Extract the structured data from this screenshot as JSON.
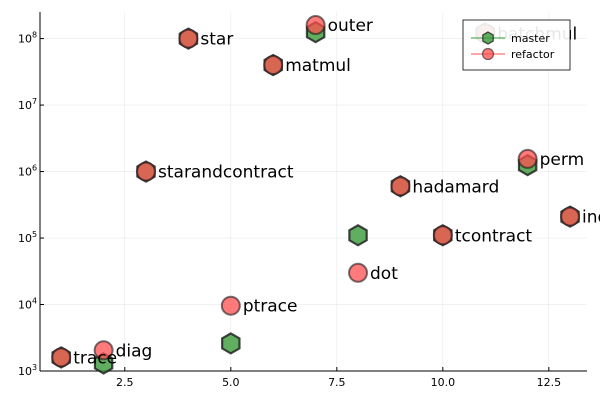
{
  "chart_data": {
    "type": "scatter",
    "title": "",
    "xlabel": "",
    "ylabel": "",
    "xlim": [
      0.5,
      13.4
    ],
    "ylim_log10": [
      3.0,
      8.4
    ],
    "yscale": "log10",
    "grid": true,
    "legend_position": "top-right",
    "x_ticks": [
      {
        "value": 2.5,
        "label": "2.5"
      },
      {
        "value": 5.0,
        "label": "5.0"
      },
      {
        "value": 7.5,
        "label": "7.5"
      },
      {
        "value": 10.0,
        "label": "10.0"
      },
      {
        "value": 12.5,
        "label": "12.5"
      }
    ],
    "y_ticks": [
      {
        "value": 1000,
        "base": "10",
        "exp": "3"
      },
      {
        "value": 10000,
        "base": "10",
        "exp": "4"
      },
      {
        "value": 100000,
        "base": "10",
        "exp": "5"
      },
      {
        "value": 1000000,
        "base": "10",
        "exp": "6"
      },
      {
        "value": 10000000,
        "base": "10",
        "exp": "7"
      },
      {
        "value": 100000000,
        "base": "10",
        "exp": "8"
      }
    ],
    "series": [
      {
        "name": "master",
        "marker": "hexagon",
        "color": "#3a9a3a",
        "points": [
          {
            "x": 1,
            "y": 1600
          },
          {
            "x": 2,
            "y": 1300
          },
          {
            "x": 3,
            "y": 1000000
          },
          {
            "x": 4,
            "y": 100000000
          },
          {
            "x": 5,
            "y": 2600
          },
          {
            "x": 6,
            "y": 40000000
          },
          {
            "x": 7,
            "y": 125000000
          },
          {
            "x": 8,
            "y": 110000
          },
          {
            "x": 9,
            "y": 600000
          },
          {
            "x": 10,
            "y": 110000
          },
          {
            "x": 11,
            "y": 120000000
          },
          {
            "x": 12,
            "y": 1250000
          },
          {
            "x": 13,
            "y": 210000
          }
        ]
      },
      {
        "name": "refactor",
        "marker": "circle",
        "color": "#ff4d4d",
        "points": [
          {
            "x": 1,
            "y": 1600
          },
          {
            "x": 2,
            "y": 2050
          },
          {
            "x": 3,
            "y": 1000000
          },
          {
            "x": 4,
            "y": 100000000
          },
          {
            "x": 5,
            "y": 9600
          },
          {
            "x": 6,
            "y": 40000000
          },
          {
            "x": 7,
            "y": 160000000
          },
          {
            "x": 8,
            "y": 30000
          },
          {
            "x": 9,
            "y": 600000
          },
          {
            "x": 10,
            "y": 110000
          },
          {
            "x": 11,
            "y": 120000000
          },
          {
            "x": 12,
            "y": 1550000
          },
          {
            "x": 13,
            "y": 210000
          }
        ]
      }
    ],
    "annotations": [
      {
        "x": 1,
        "y": 1600,
        "text": "trace"
      },
      {
        "x": 2,
        "y": 2050,
        "text": "diag"
      },
      {
        "x": 3,
        "y": 1000000,
        "text": "starandcontract"
      },
      {
        "x": 4,
        "y": 100000000,
        "text": "star"
      },
      {
        "x": 5,
        "y": 9600,
        "text": "ptrace"
      },
      {
        "x": 6,
        "y": 40000000,
        "text": "matmul"
      },
      {
        "x": 7,
        "y": 160000000,
        "text": "outer"
      },
      {
        "x": 8,
        "y": 30000,
        "text": "dot"
      },
      {
        "x": 9,
        "y": 600000,
        "text": "hadamard"
      },
      {
        "x": 10,
        "y": 110000,
        "text": "tcontract"
      },
      {
        "x": 11,
        "y": 120000000,
        "text": "batchmul"
      },
      {
        "x": 12,
        "y": 1550000,
        "text": "perm"
      },
      {
        "x": 13,
        "y": 210000,
        "text": "indexsum"
      }
    ]
  }
}
